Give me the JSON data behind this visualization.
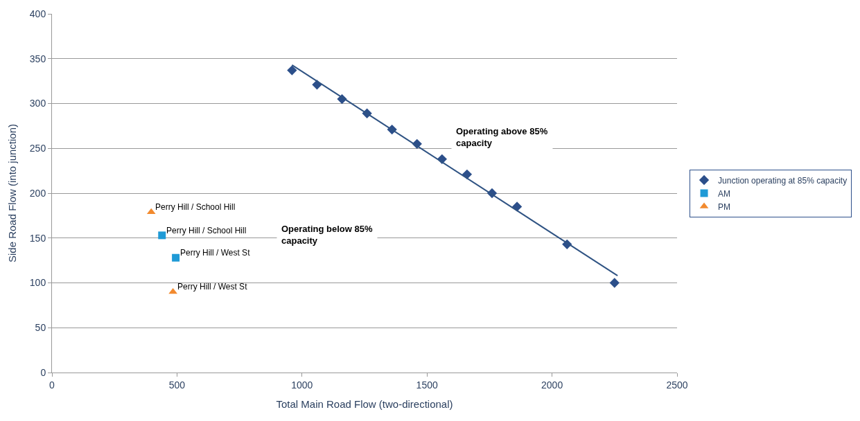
{
  "chart_data": {
    "type": "scatter",
    "xlabel": "Total Main Road Flow (two-directional)",
    "ylabel": "Side Road Flow (into junction)",
    "xlim": [
      0,
      2500
    ],
    "xticks": [
      0,
      500,
      1000,
      1500,
      2000,
      2500
    ],
    "ylim": [
      0,
      400
    ],
    "yticks": [
      0,
      50,
      100,
      150,
      200,
      250,
      300,
      350,
      400
    ],
    "grid": "y",
    "legend": "right",
    "series": [
      {
        "name": "Junction operating at 85% capacity",
        "color": "#2c4f8a",
        "marker": "diamond",
        "x": [
          960,
          1060,
          1160,
          1260,
          1360,
          1460,
          1560,
          1660,
          1760,
          1860,
          2060,
          2250
        ],
        "values": [
          337,
          321,
          305,
          289,
          271,
          255,
          238,
          221,
          200,
          185,
          143,
          100
        ]
      },
      {
        "name": "AM",
        "color": "#1f9ad6",
        "marker": "square",
        "x": [
          440,
          495
        ],
        "values": [
          153,
          128
        ]
      },
      {
        "name": "PM",
        "color": "#f28a2e",
        "marker": "triangle",
        "x": [
          397,
          484
        ],
        "values": [
          179,
          90
        ]
      },
      {
        "type": "line",
        "color": "#2f5383",
        "marker": "none",
        "x": [
          960,
          2262
        ],
        "values": [
          343,
          108
        ]
      }
    ],
    "annotations": [
      {
        "text": "Perry Hill / School Hill",
        "x": 397,
        "y": 179
      },
      {
        "text": "Perry Hill / School Hill",
        "x": 440,
        "y": 153
      },
      {
        "text": "Perry Hill / West St",
        "x": 495,
        "y": 128
      },
      {
        "text": "Perry Hill / West St",
        "x": 484,
        "y": 90
      },
      "Operating above 85% capacity",
      "Operating below 85% capacity"
    ]
  }
}
